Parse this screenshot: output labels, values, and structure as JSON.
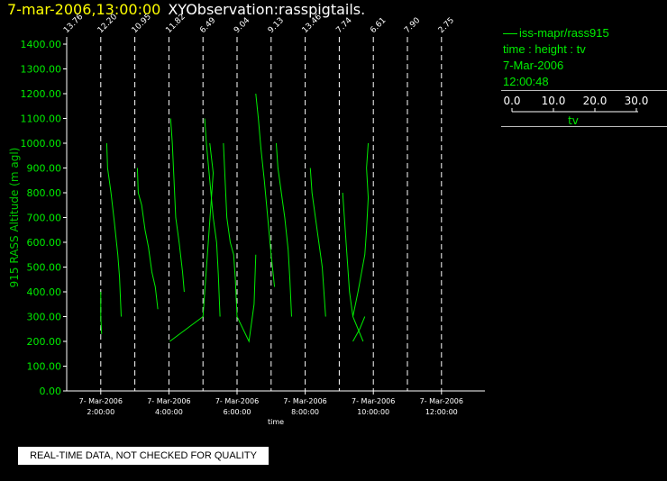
{
  "header": {
    "timestamp": "7-mar-2006,13:00:00",
    "name": "XYObservation:rasspigtails."
  },
  "legend": {
    "series_label": "iss-mapr/rass915",
    "axes_label": "time : height : tv",
    "date": "7-Mar-2006",
    "time": "12:00:48",
    "scale_ticks": [
      "0.0",
      "10.0",
      "20.0",
      "30.0"
    ],
    "scale_label": "tv"
  },
  "disclaimer": "REAL-TIME DATA, NOT CHECKED FOR QUALITY",
  "colors": {
    "series": "#00ee00",
    "axis": "#ffffff",
    "ylabel": "#00cc00",
    "title_time": "#ffff00"
  },
  "chart_data": {
    "type": "line",
    "ylabel": "915 RASS Altitude (m agl)",
    "xlabel": "time",
    "ylim": [
      0,
      1400
    ],
    "yticks": [
      "0.00",
      "100.00",
      "200.00",
      "300.00",
      "400.00",
      "500.00",
      "600.00",
      "700.00",
      "800.00",
      "900.00",
      "1000.00",
      "1100.00",
      "1200.00",
      "1300.00",
      "1400.00"
    ],
    "xlim_hours": [
      0.0,
      12.0
    ],
    "xticks": [
      {
        "hour": 2,
        "date": "7- Mar-2006",
        "time": "2:00:00"
      },
      {
        "hour": 4,
        "date": "7- Mar-2006",
        "time": "4:00:00"
      },
      {
        "hour": 6,
        "date": "7- Mar-2006",
        "time": "6:00:00"
      },
      {
        "hour": 8,
        "date": "7- Mar-2006",
        "time": "8:00:00"
      },
      {
        "hour": 10,
        "date": "7- Mar-2006",
        "time": "10:00:00"
      },
      {
        "hour": 12,
        "date": "7- Mar-2006",
        "time": "12:00:00"
      }
    ],
    "profile_times": [
      {
        "hour": 0.0,
        "label": "13.76"
      },
      {
        "hour": 2.0,
        "label": "12.20"
      },
      {
        "hour": 4.0,
        "label": "10.95"
      },
      {
        "hour": 6.0,
        "label": "11.82"
      },
      {
        "hour": 8.0,
        "label": "6.49"
      },
      {
        "hour": 10.0,
        "label": "9.04"
      },
      {
        "hour": 12.0,
        "label": "9.13"
      },
      {
        "hour": 14.0,
        "label": "13.46"
      },
      {
        "hour": 16.0,
        "label": "7.74"
      },
      {
        "hour": 18.0,
        "label": "6.61"
      },
      {
        "hour": 20.0,
        "label": "7.90"
      },
      {
        "hour": 22.0,
        "label": "2.75"
      }
    ],
    "series": [
      {
        "points": [
          [
            2.0,
            400
          ],
          [
            2.0,
            300
          ],
          [
            2.05,
            230
          ]
        ]
      },
      {
        "points": [
          [
            2.35,
            1000
          ],
          [
            2.4,
            900
          ],
          [
            2.6,
            800
          ],
          [
            2.8,
            680
          ],
          [
            3.0,
            550
          ],
          [
            3.1,
            460
          ],
          [
            3.2,
            300
          ]
        ]
      },
      {
        "points": [
          [
            4.15,
            900
          ],
          [
            4.2,
            800
          ],
          [
            4.4,
            750
          ],
          [
            4.6,
            650
          ],
          [
            4.8,
            580
          ],
          [
            5.0,
            480
          ],
          [
            5.2,
            420
          ],
          [
            5.35,
            330
          ]
        ]
      },
      {
        "points": [
          [
            6.1,
            1100
          ],
          [
            6.2,
            1000
          ],
          [
            6.3,
            850
          ],
          [
            6.4,
            700
          ],
          [
            6.6,
            600
          ],
          [
            6.8,
            480
          ],
          [
            6.9,
            400
          ]
        ]
      },
      {
        "points": [
          [
            6.05,
            200
          ],
          [
            8.0,
            300
          ],
          [
            8.6,
            880
          ],
          [
            8.4,
            1000
          ]
        ]
      },
      {
        "points": [
          [
            8.1,
            1100
          ],
          [
            8.2,
            1000
          ],
          [
            8.4,
            850
          ],
          [
            8.6,
            700
          ],
          [
            8.8,
            600
          ],
          [
            8.9,
            470
          ],
          [
            9.0,
            300
          ]
        ]
      },
      {
        "points": [
          [
            9.2,
            1000
          ],
          [
            9.3,
            850
          ],
          [
            9.4,
            700
          ],
          [
            9.6,
            600
          ],
          [
            9.8,
            550
          ],
          [
            9.9,
            450
          ],
          [
            10.0,
            300
          ],
          [
            10.7,
            200
          ],
          [
            11.0,
            350
          ],
          [
            11.1,
            550
          ]
        ]
      },
      {
        "points": [
          [
            11.1,
            1200
          ],
          [
            11.25,
            1100
          ],
          [
            11.4,
            980
          ],
          [
            11.6,
            850
          ],
          [
            11.8,
            700
          ],
          [
            12.0,
            550
          ],
          [
            12.2,
            420
          ]
        ]
      },
      {
        "points": [
          [
            12.3,
            1000
          ],
          [
            12.4,
            900
          ],
          [
            12.6,
            800
          ],
          [
            12.8,
            700
          ],
          [
            13.0,
            570
          ],
          [
            13.1,
            450
          ],
          [
            13.2,
            300
          ]
        ]
      },
      {
        "points": [
          [
            14.3,
            900
          ],
          [
            14.4,
            800
          ],
          [
            14.6,
            700
          ],
          [
            14.8,
            600
          ],
          [
            15.0,
            500
          ],
          [
            15.1,
            400
          ],
          [
            15.2,
            300
          ]
        ]
      },
      {
        "points": [
          [
            16.2,
            800
          ],
          [
            16.3,
            700
          ],
          [
            16.4,
            600
          ],
          [
            16.5,
            500
          ],
          [
            16.6,
            400
          ],
          [
            16.8,
            300
          ],
          [
            17.1,
            250
          ],
          [
            17.4,
            200
          ],
          [
            16.8,
            300
          ],
          [
            17.1,
            400
          ],
          [
            17.5,
            550
          ],
          [
            17.6,
            650
          ],
          [
            17.7,
            780
          ],
          [
            17.6,
            900
          ],
          [
            17.7,
            1000
          ]
        ]
      },
      {
        "points": [
          [
            16.8,
            200
          ],
          [
            17.2,
            250
          ],
          [
            17.5,
            300
          ]
        ]
      }
    ]
  }
}
